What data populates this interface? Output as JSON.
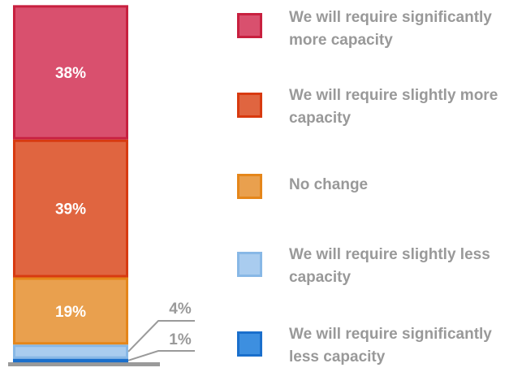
{
  "chart_data": {
    "type": "bar",
    "stacked": true,
    "orientation": "vertical",
    "series": [
      {
        "name": "We will require significantly more capacity",
        "value": 38,
        "label": "38%",
        "fill": "#D9506E",
        "stroke": "#C8203F"
      },
      {
        "name": "We will require slightly more capacity",
        "value": 39,
        "label": "39%",
        "fill": "#E06540",
        "stroke": "#D83A10"
      },
      {
        "name": "No change",
        "value": 19,
        "label": "19%",
        "fill": "#E9A04E",
        "stroke": "#E5861A"
      },
      {
        "name": "We will require slightly less capacity",
        "value": 4,
        "label": "4%",
        "fill": "#A9CCEF",
        "stroke": "#88B8E6"
      },
      {
        "name": "We will require significantly less capacity",
        "value": 1,
        "label": "1%",
        "fill": "#3D8FE0",
        "stroke": "#1A6FCC"
      }
    ],
    "legend_position": "right",
    "axis_color": "#9A9A9A",
    "label_color_inside": "#FFFFFF",
    "label_color_outside": "#9A9A9A"
  }
}
